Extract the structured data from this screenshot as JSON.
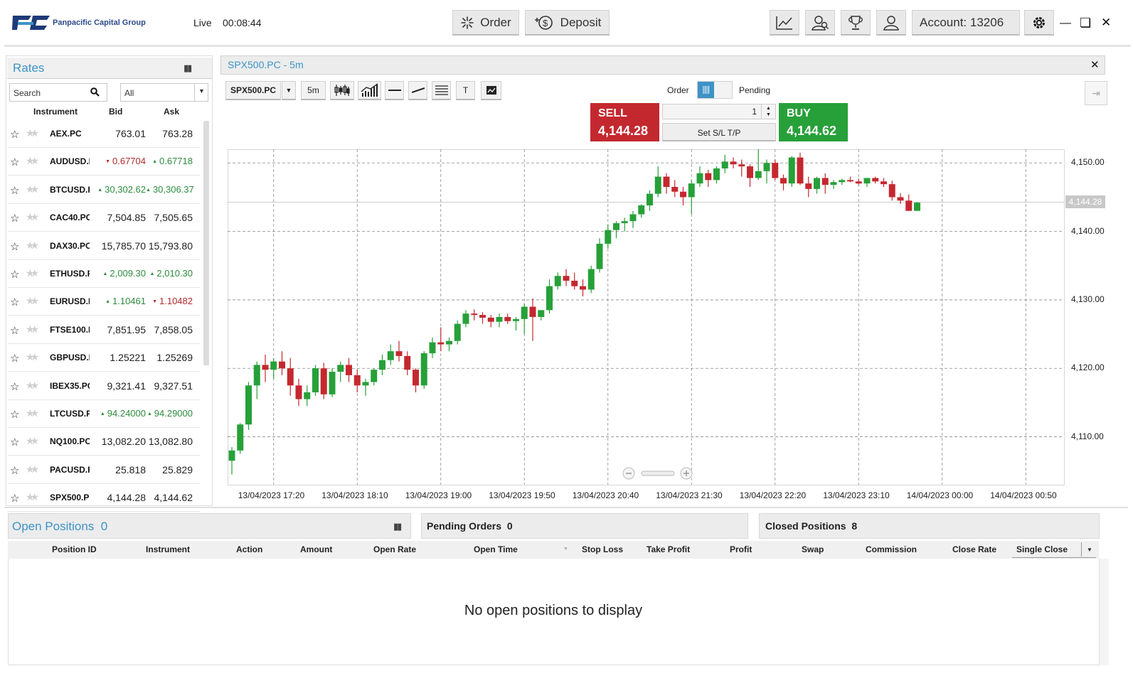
{
  "header": {
    "brand": "Panpacific Capital Group",
    "live_label": "Live",
    "clock": "00:08:44",
    "order_label": "Order",
    "deposit_label": "Deposit",
    "account_label": "Account: 13206",
    "icons": [
      "chart-icon",
      "users-icon",
      "trophy-icon",
      "user-icon",
      "gear-icon",
      "minimize-icon",
      "maximize-icon",
      "close-icon"
    ]
  },
  "rates": {
    "title": "Rates",
    "search_placeholder": "Search",
    "filter": "All",
    "columns": [
      "Instrument",
      "Bid",
      "Ask"
    ],
    "rows": [
      {
        "instrument": "AEX.PC",
        "bid": "763.01",
        "ask": "763.28",
        "bid_dir": "",
        "ask_dir": ""
      },
      {
        "instrument": "AUDUSD.PC",
        "bid": "0.67704",
        "ask": "0.67718",
        "bid_dir": "down",
        "ask_dir": "up"
      },
      {
        "instrument": "BTCUSD.PC",
        "bid": "30,302.62",
        "ask": "30,306.37",
        "bid_dir": "up",
        "ask_dir": "up"
      },
      {
        "instrument": "CAC40.PC",
        "bid": "7,504.85",
        "ask": "7,505.65",
        "bid_dir": "",
        "ask_dir": ""
      },
      {
        "instrument": "DAX30.PC",
        "bid": "15,785.70",
        "ask": "15,793.80",
        "bid_dir": "",
        "ask_dir": ""
      },
      {
        "instrument": "ETHUSD.PC",
        "bid": "2,009.30",
        "ask": "2,010.30",
        "bid_dir": "up",
        "ask_dir": "up"
      },
      {
        "instrument": "EURUSD.PC",
        "bid": "1.10461",
        "ask": "1.10482",
        "bid_dir": "up",
        "ask_dir": "down"
      },
      {
        "instrument": "FTSE100.PC",
        "bid": "7,851.95",
        "ask": "7,858.05",
        "bid_dir": "",
        "ask_dir": ""
      },
      {
        "instrument": "GBPUSD.PC",
        "bid": "1.25221",
        "ask": "1.25269",
        "bid_dir": "",
        "ask_dir": ""
      },
      {
        "instrument": "IBEX35.PC",
        "bid": "9,321.41",
        "ask": "9,327.51",
        "bid_dir": "",
        "ask_dir": ""
      },
      {
        "instrument": "LTCUSD.PC",
        "bid": "94.24000",
        "ask": "94.29000",
        "bid_dir": "up",
        "ask_dir": "up"
      },
      {
        "instrument": "NQ100.PC",
        "bid": "13,082.20",
        "ask": "13,082.80",
        "bid_dir": "",
        "ask_dir": ""
      },
      {
        "instrument": "PACUSD.PC",
        "bid": "25.818",
        "ask": "25.829",
        "bid_dir": "",
        "ask_dir": ""
      },
      {
        "instrument": "SPX500.PC",
        "bid": "4,144.28",
        "ask": "4,144.62",
        "bid_dir": "",
        "ask_dir": ""
      }
    ]
  },
  "chart_panel": {
    "title": "SPX500.PC - 5m",
    "symbol": "SPX500.PC",
    "timeframe": "5m",
    "text_tool": "T",
    "order_label": "Order",
    "pending_label": "Pending",
    "sell_label": "SELL",
    "sell_price": "4,144.28",
    "buy_label": "BUY",
    "buy_price": "4,144.62",
    "quantity": "1",
    "sltp_label": "Set S/L T/P",
    "current_price_tag": "4,144.28"
  },
  "chart_data": {
    "type": "candlestick",
    "ylim": [
      4103,
      4152
    ],
    "y_ticks": [
      "4,110.00",
      "4,120.00",
      "4,130.00",
      "4,140.00",
      "4,150.00"
    ],
    "x_ticks": [
      "13/04/2023 17:20",
      "13/04/2023 18:10",
      "13/04/2023 19:00",
      "13/04/2023 19:50",
      "13/04/2023 20:40",
      "13/04/2023 21:30",
      "13/04/2023 22:20",
      "13/04/2023 23:10",
      "14/04/2023 00:00",
      "14/04/2023 00:50"
    ],
    "up_color": "#27a039",
    "down_color": "#c4282f",
    "candles": [
      [
        4106.5,
        4108.5,
        4104.5,
        4108.0
      ],
      [
        4108.0,
        4112.0,
        4107.5,
        4111.8
      ],
      [
        4111.8,
        4118.0,
        4111.0,
        4117.5
      ],
      [
        4117.5,
        4121.0,
        4115.5,
        4120.5
      ],
      [
        4120.5,
        4122.0,
        4118.0,
        4119.8
      ],
      [
        4119.8,
        4121.5,
        4118.5,
        4121.0
      ],
      [
        4121.0,
        4122.5,
        4119.0,
        4120.0
      ],
      [
        4120.0,
        4121.5,
        4116.0,
        4117.5
      ],
      [
        4117.5,
        4118.5,
        4114.5,
        4115.5
      ],
      [
        4115.5,
        4117.5,
        4114.5,
        4116.5
      ],
      [
        4116.5,
        4120.5,
        4116.0,
        4120.0
      ],
      [
        4120.0,
        4120.8,
        4115.5,
        4116.2
      ],
      [
        4116.2,
        4120.0,
        4115.8,
        4119.5
      ],
      [
        4119.5,
        4121.0,
        4118.0,
        4120.5
      ],
      [
        4120.5,
        4121.5,
        4118.0,
        4119.0
      ],
      [
        4119.0,
        4119.8,
        4116.5,
        4117.5
      ],
      [
        4117.5,
        4118.5,
        4116.0,
        4118.0
      ],
      [
        4118.0,
        4120.0,
        4117.5,
        4119.8
      ],
      [
        4119.8,
        4122.0,
        4119.0,
        4121.2
      ],
      [
        4121.2,
        4123.5,
        4120.5,
        4122.5
      ],
      [
        4122.5,
        4124.0,
        4121.0,
        4121.8
      ],
      [
        4121.8,
        4122.5,
        4119.0,
        4119.8
      ],
      [
        4119.8,
        4120.0,
        4116.5,
        4117.5
      ],
      [
        4117.5,
        4122.5,
        4117.0,
        4122.2
      ],
      [
        4122.2,
        4124.5,
        4121.5,
        4123.8
      ],
      [
        4123.8,
        4126.0,
        4122.5,
        4123.5
      ],
      [
        4123.5,
        4124.5,
        4122.5,
        4124.0
      ],
      [
        4124.0,
        4127.0,
        4123.5,
        4126.5
      ],
      [
        4126.5,
        4128.5,
        4126.0,
        4128.0
      ],
      [
        4128.0,
        4128.6,
        4127.0,
        4127.8
      ],
      [
        4127.8,
        4128.2,
        4126.5,
        4127.4
      ],
      [
        4127.4,
        4127.8,
        4126.0,
        4126.8
      ],
      [
        4126.8,
        4128.0,
        4126.0,
        4127.5
      ],
      [
        4127.5,
        4128.0,
        4126.5,
        4126.9
      ],
      [
        4126.9,
        4127.5,
        4125.5,
        4127.2
      ],
      [
        4127.2,
        4129.5,
        4125.0,
        4129.0
      ],
      [
        4129.0,
        4130.2,
        4124.0,
        4127.5
      ],
      [
        4127.5,
        4128.5,
        4127.0,
        4128.5
      ],
      [
        4128.5,
        4133.0,
        4128.0,
        4132.0
      ],
      [
        4132.0,
        4134.0,
        4131.5,
        4133.5
      ],
      [
        4133.5,
        4134.5,
        4132.0,
        4132.8
      ],
      [
        4132.8,
        4134.0,
        4131.5,
        4132.0
      ],
      [
        4132.0,
        4133.0,
        4130.5,
        4131.5
      ],
      [
        4131.5,
        4135.0,
        4131.0,
        4134.5
      ],
      [
        4134.5,
        4139.0,
        4134.0,
        4138.2
      ],
      [
        4138.2,
        4141.0,
        4137.5,
        4140.2
      ],
      [
        4140.2,
        4141.5,
        4139.0,
        4141.2
      ],
      [
        4141.2,
        4142.0,
        4140.0,
        4141.5
      ],
      [
        4141.5,
        4143.0,
        4140.5,
        4142.5
      ],
      [
        4142.5,
        4144.0,
        4142.0,
        4143.8
      ],
      [
        4143.8,
        4146.0,
        4143.0,
        4145.5
      ],
      [
        4145.5,
        4149.5,
        4145.0,
        4148.0
      ],
      [
        4148.0,
        4148.5,
        4145.5,
        4146.5
      ],
      [
        4146.5,
        4147.5,
        4145.0,
        4145.8
      ],
      [
        4145.8,
        4146.5,
        4143.8,
        4145.0
      ],
      [
        4145.0,
        4147.5,
        4142.5,
        4147.0
      ],
      [
        4147.0,
        4149.5,
        4146.5,
        4148.5
      ],
      [
        4148.5,
        4149.0,
        4146.5,
        4147.5
      ],
      [
        4147.5,
        4149.5,
        4147.0,
        4149.2
      ],
      [
        4149.2,
        4151.2,
        4148.5,
        4150.2
      ],
      [
        4150.2,
        4150.8,
        4149.2,
        4149.8
      ],
      [
        4149.8,
        4150.5,
        4148.0,
        4149.5
      ],
      [
        4149.5,
        4149.8,
        4146.5,
        4147.8
      ],
      [
        4147.8,
        4152.2,
        4147.5,
        4148.8
      ],
      [
        4148.8,
        4150.5,
        4147.0,
        4150.0
      ],
      [
        4150.0,
        4150.5,
        4147.5,
        4147.8
      ],
      [
        4147.8,
        4148.3,
        4146.0,
        4147.0
      ],
      [
        4147.0,
        4151.0,
        4146.5,
        4150.8
      ],
      [
        4150.8,
        4151.5,
        4146.8,
        4147.0
      ],
      [
        4147.0,
        4148.0,
        4145.0,
        4146.2
      ],
      [
        4146.2,
        4148.0,
        4145.5,
        4147.8
      ],
      [
        4147.8,
        4148.5,
        4145.5,
        4146.8
      ],
      [
        4146.8,
        4147.5,
        4146.2,
        4147.2
      ],
      [
        4147.2,
        4147.7,
        4146.8,
        4147.5
      ],
      [
        4147.5,
        4148.0,
        4147.2,
        4147.3
      ],
      [
        4147.3,
        4147.7,
        4146.8,
        4147.0
      ],
      [
        4147.0,
        4147.8,
        4146.5,
        4147.8
      ],
      [
        4147.8,
        4148.0,
        4147.0,
        4147.3
      ],
      [
        4147.3,
        4147.8,
        4146.5,
        4146.9
      ],
      [
        4146.9,
        4147.4,
        4144.5,
        4145.0
      ],
      [
        4145.0,
        4145.6,
        4144.0,
        4144.5
      ],
      [
        4144.5,
        4145.4,
        4143.0,
        4143.0
      ],
      [
        4143.0,
        4144.3,
        4143.0,
        4144.2
      ]
    ]
  },
  "bottom": {
    "open_title": "Open Positions",
    "open_count": "0",
    "pending_title": "Pending Orders",
    "pending_count": "0",
    "closed_title": "Closed Positions",
    "closed_count": "8",
    "columns": [
      "Position ID",
      "Instrument",
      "Action",
      "Amount",
      "Open Rate",
      "Open Time",
      "Stop Loss",
      "Take Profit",
      "Profit",
      "Swap",
      "Commission",
      "Close Rate"
    ],
    "close_mode": "Single Close",
    "empty_message": "No open positions to display"
  }
}
